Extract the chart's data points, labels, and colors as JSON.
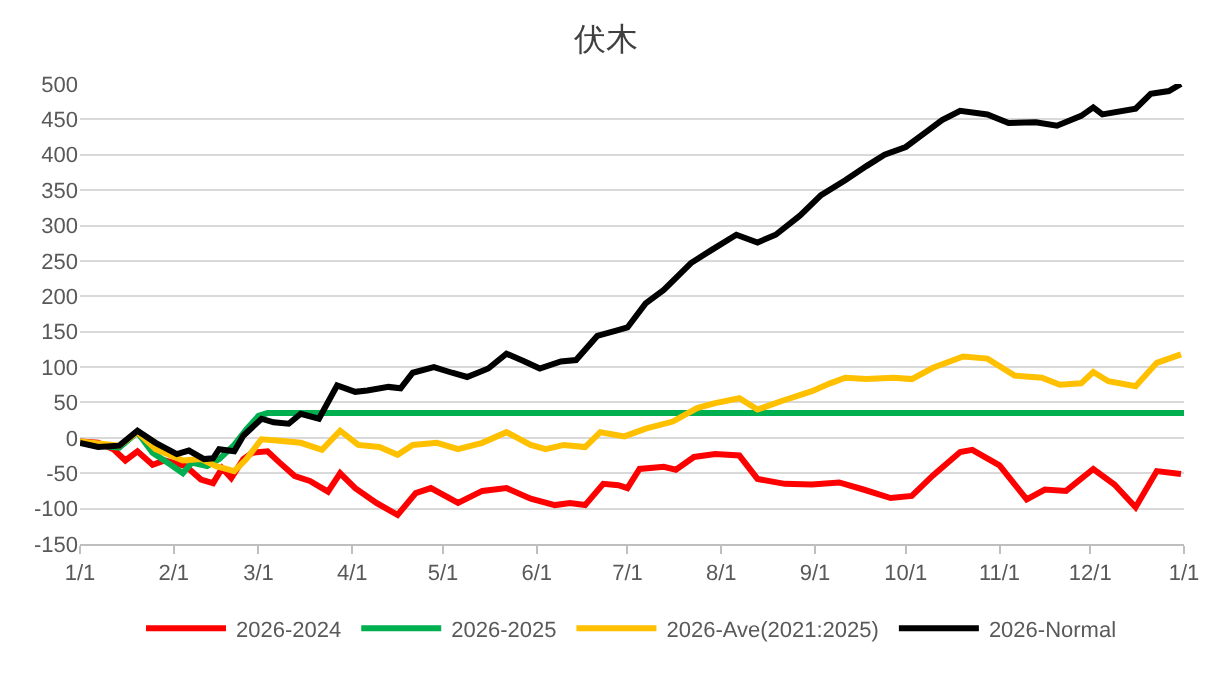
{
  "chart_data": {
    "type": "line",
    "title": "伏木",
    "xlim": [
      "2026-01-01",
      "2027-01-01"
    ],
    "xticks": [
      {
        "value": "2026-01-01",
        "label": "1/1"
      },
      {
        "value": "2026-02-01",
        "label": "2/1"
      },
      {
        "value": "2026-03-01",
        "label": "3/1"
      },
      {
        "value": "2026-04-01",
        "label": "4/1"
      },
      {
        "value": "2026-05-01",
        "label": "5/1"
      },
      {
        "value": "2026-06-01",
        "label": "6/1"
      },
      {
        "value": "2026-07-01",
        "label": "7/1"
      },
      {
        "value": "2026-08-01",
        "label": "8/1"
      },
      {
        "value": "2026-09-01",
        "label": "9/1"
      },
      {
        "value": "2026-10-01",
        "label": "10/1"
      },
      {
        "value": "2026-11-01",
        "label": "11/1"
      },
      {
        "value": "2026-12-01",
        "label": "12/1"
      },
      {
        "value": "2027-01-01",
        "label": "1/1"
      }
    ],
    "ylim": [
      -150,
      500
    ],
    "yticks": [
      -150,
      -100,
      -50,
      0,
      50,
      100,
      150,
      200,
      250,
      300,
      350,
      400,
      450,
      500
    ],
    "grid": "y",
    "legend": "bottom",
    "marker": "none",
    "line_style": "solid",
    "series": [
      {
        "name": "2026-2024",
        "color": "#ff0000",
        "x": [
          "2026-01-01",
          "2026-01-07",
          "2026-01-12",
          "2026-01-16",
          "2026-01-20",
          "2026-01-25",
          "2026-01-29",
          "2026-02-05",
          "2026-02-10",
          "2026-02-14",
          "2026-02-17",
          "2026-02-20",
          "2026-02-24",
          "2026-02-27",
          "2026-03-04",
          "2026-03-08",
          "2026-03-13",
          "2026-03-18",
          "2026-03-24",
          "2026-03-28",
          "2026-04-02",
          "2026-04-09",
          "2026-04-16",
          "2026-04-22",
          "2026-04-27",
          "2026-05-06",
          "2026-05-14",
          "2026-05-22",
          "2026-05-30",
          "2026-06-07",
          "2026-06-12",
          "2026-06-17",
          "2026-06-23",
          "2026-06-28",
          "2026-07-01",
          "2026-07-05",
          "2026-07-13",
          "2026-07-17",
          "2026-07-23",
          "2026-07-30",
          "2026-08-07",
          "2026-08-13",
          "2026-08-22",
          "2026-08-31",
          "2026-09-09",
          "2026-09-17",
          "2026-09-26",
          "2026-10-03",
          "2026-10-10",
          "2026-10-19",
          "2026-10-23",
          "2026-11-01",
          "2026-11-10",
          "2026-11-16",
          "2026-11-23",
          "2026-12-02",
          "2026-12-09",
          "2026-12-16",
          "2026-12-23",
          "2026-12-31"
        ],
        "values": [
          -5,
          -7,
          -16,
          -32,
          -19,
          -38,
          -32,
          -40,
          -59,
          -64,
          -43,
          -57,
          -30,
          -21,
          -19,
          -35,
          -54,
          -61,
          -76,
          -50,
          -71,
          -92,
          -109,
          -78,
          -71,
          -92,
          -75,
          -71,
          -86,
          -95,
          -92,
          -95,
          -65,
          -67,
          -71,
          -44,
          -41,
          -45,
          -27,
          -23,
          -25,
          -58,
          -65,
          -66,
          -63,
          -73,
          -85,
          -82,
          -53,
          -20,
          -17,
          -39,
          -87,
          -73,
          -75,
          -44,
          -66,
          -98,
          -47,
          -51
        ]
      },
      {
        "name": "2026-2025",
        "color": "#00b050",
        "x": [
          "2026-01-01",
          "2026-01-07",
          "2026-01-14",
          "2026-01-20",
          "2026-01-25",
          "2026-01-31",
          "2026-02-04",
          "2026-02-07",
          "2026-02-12",
          "2026-02-16",
          "2026-02-21",
          "2026-02-25",
          "2026-03-01",
          "2026-03-04",
          "2027-01-01"
        ],
        "values": [
          -5,
          -11,
          -14,
          8,
          -21,
          -38,
          -50,
          -35,
          -40,
          -30,
          -10,
          12,
          31,
          35,
          35
        ]
      },
      {
        "name": "2026-Ave(2021:2025)",
        "color": "#ffc000",
        "x": [
          "2026-01-01",
          "2026-01-14",
          "2026-01-20",
          "2026-01-26",
          "2026-02-04",
          "2026-02-10",
          "2026-02-15",
          "2026-02-21",
          "2026-02-25",
          "2026-03-02",
          "2026-03-08",
          "2026-03-15",
          "2026-03-22",
          "2026-03-28",
          "2026-04-03",
          "2026-04-10",
          "2026-04-16",
          "2026-04-21",
          "2026-04-29",
          "2026-05-06",
          "2026-05-14",
          "2026-05-22",
          "2026-05-30",
          "2026-06-04",
          "2026-06-10",
          "2026-06-17",
          "2026-06-22",
          "2026-06-30",
          "2026-07-07",
          "2026-07-16",
          "2026-07-24",
          "2026-07-30",
          "2026-08-07",
          "2026-08-13",
          "2026-08-21",
          "2026-08-31",
          "2026-09-06",
          "2026-09-11",
          "2026-09-18",
          "2026-09-27",
          "2026-10-03",
          "2026-10-10",
          "2026-10-20",
          "2026-10-28",
          "2026-11-06",
          "2026-11-15",
          "2026-11-21",
          "2026-11-28",
          "2026-12-02",
          "2026-12-07",
          "2026-12-16",
          "2026-12-23",
          "2026-12-31"
        ],
        "values": [
          -5,
          -11,
          8,
          -16,
          -32,
          -30,
          -40,
          -47,
          -30,
          -2,
          -4,
          -7,
          -17,
          10,
          -10,
          -13,
          -24,
          -10,
          -7,
          -16,
          -7,
          8,
          -10,
          -16,
          -10,
          -13,
          8,
          2,
          13,
          23,
          42,
          49,
          56,
          40,
          52,
          66,
          77,
          85,
          83,
          85,
          83,
          99,
          115,
          112,
          88,
          85,
          75,
          77,
          93,
          80,
          73,
          106,
          118
        ]
      },
      {
        "name": "2026-Normal",
        "color": "#000000",
        "x": [
          "2026-01-01",
          "2026-01-07",
          "2026-01-14",
          "2026-01-20",
          "2026-01-26",
          "2026-02-02",
          "2026-02-06",
          "2026-02-11",
          "2026-02-14",
          "2026-02-16",
          "2026-02-21",
          "2026-02-24",
          "2026-03-02",
          "2026-03-06",
          "2026-03-11",
          "2026-03-15",
          "2026-03-21",
          "2026-03-27",
          "2026-04-02",
          "2026-04-06",
          "2026-04-13",
          "2026-04-17",
          "2026-04-21",
          "2026-04-28",
          "2026-05-04",
          "2026-05-09",
          "2026-05-16",
          "2026-05-22",
          "2026-05-28",
          "2026-06-02",
          "2026-06-09",
          "2026-06-14",
          "2026-06-21",
          "2026-06-27",
          "2026-07-01",
          "2026-07-07",
          "2026-07-13",
          "2026-07-22",
          "2026-07-29",
          "2026-08-06",
          "2026-08-13",
          "2026-08-19",
          "2026-08-27",
          "2026-09-03",
          "2026-09-11",
          "2026-09-18",
          "2026-09-24",
          "2026-10-01",
          "2026-10-08",
          "2026-10-13",
          "2026-10-19",
          "2026-10-28",
          "2026-11-04",
          "2026-11-13",
          "2026-11-20",
          "2026-11-28",
          "2026-12-02",
          "2026-12-05",
          "2026-12-16",
          "2026-12-21",
          "2026-12-27",
          "2026-12-31"
        ],
        "values": [
          -7,
          -13,
          -11,
          10,
          -7,
          -23,
          -18,
          -30,
          -29,
          -16,
          -19,
          3,
          27,
          22,
          20,
          34,
          27,
          74,
          65,
          67,
          72,
          70,
          92,
          100,
          92,
          86,
          98,
          119,
          108,
          98,
          108,
          110,
          144,
          151,
          156,
          190,
          209,
          247,
          266,
          287,
          276,
          287,
          314,
          343,
          364,
          384,
          400,
          411,
          433,
          449,
          462,
          457,
          445,
          446,
          441,
          455,
          467,
          457,
          465,
          486,
          490,
          500
        ]
      }
    ]
  }
}
